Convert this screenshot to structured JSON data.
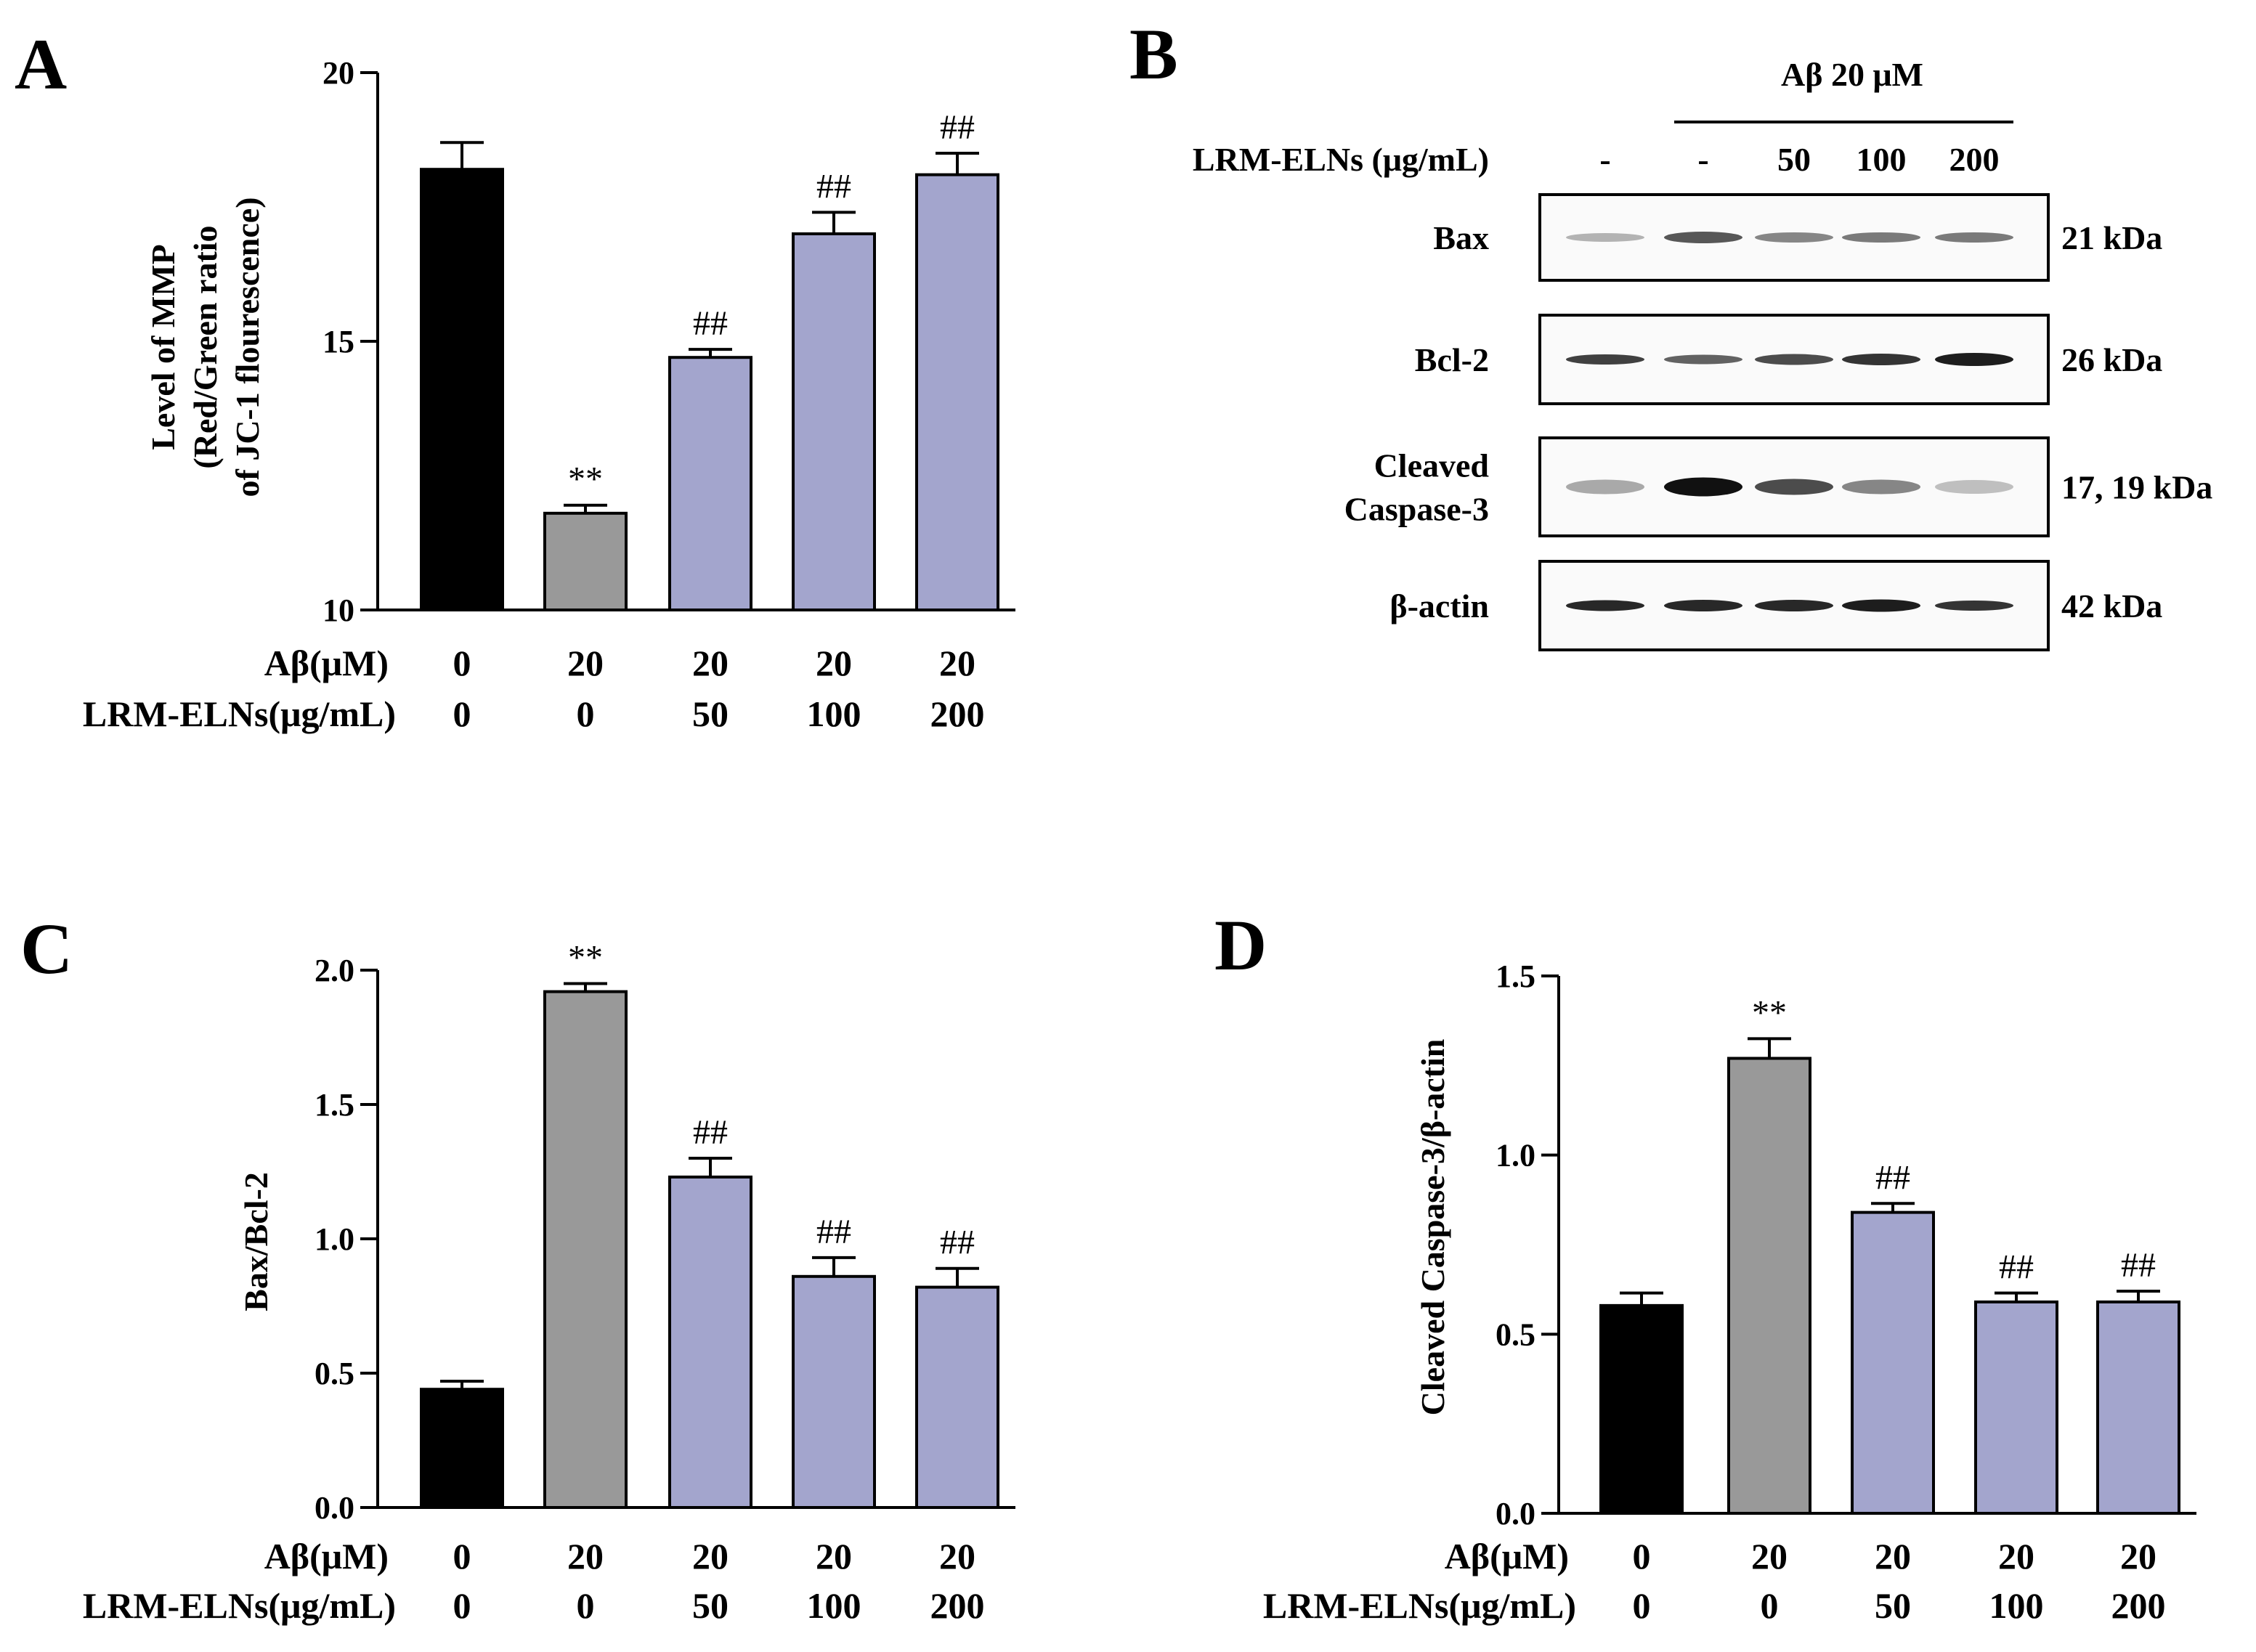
{
  "colors": {
    "control": "#000000",
    "model": "#999999",
    "treated": "#a3a5cd",
    "band": "#111111"
  },
  "condition_labels": {
    "abeta_label": "Aβ(μM)",
    "elns_label": "LRM-ELNs(μg/mL)",
    "abeta_values": [
      "0",
      "20",
      "20",
      "20",
      "20"
    ],
    "elns_values": [
      "0",
      "0",
      "50",
      "100",
      "200"
    ]
  },
  "panels": {
    "A": {
      "letter": "A"
    },
    "B": {
      "letter": "B"
    },
    "C": {
      "letter": "C"
    },
    "D": {
      "letter": "D"
    }
  },
  "chart_data": [
    {
      "id": "A",
      "type": "bar",
      "categories": [
        "0/0",
        "20/0",
        "20/50",
        "20/100",
        "20/200"
      ],
      "values": [
        18.2,
        11.8,
        14.7,
        17.0,
        18.1
      ],
      "errors": [
        0.5,
        0.15,
        0.15,
        0.4,
        0.4
      ],
      "annotations": [
        "",
        "**",
        "##",
        "##",
        "##"
      ],
      "ylabel_lines": [
        "Level of MMP",
        "(Red/Green ratio",
        "of JC-1 flourescence)"
      ],
      "ylim": [
        10,
        20
      ],
      "yticks": [
        10,
        15,
        20
      ],
      "ytick_labels": [
        "10",
        "15",
        "20"
      ]
    },
    {
      "id": "C",
      "type": "bar",
      "categories": [
        "0/0",
        "20/0",
        "20/50",
        "20/100",
        "20/200"
      ],
      "values": [
        0.44,
        1.92,
        1.23,
        0.86,
        0.82
      ],
      "errors": [
        0.03,
        0.03,
        0.07,
        0.07,
        0.07
      ],
      "annotations": [
        "",
        "**",
        "##",
        "##",
        "##"
      ],
      "ylabel_lines": [
        "Bax/Bcl-2"
      ],
      "ylim": [
        0,
        2.0
      ],
      "yticks": [
        0,
        0.5,
        1.0,
        1.5,
        2.0
      ],
      "ytick_labels": [
        "0.0",
        "0.5",
        "1.0",
        "1.5",
        "2.0"
      ]
    },
    {
      "id": "D",
      "type": "bar",
      "categories": [
        "0/0",
        "20/0",
        "20/50",
        "20/100",
        "20/200"
      ],
      "values": [
        0.58,
        1.27,
        0.84,
        0.59,
        0.59
      ],
      "errors": [
        0.035,
        0.055,
        0.025,
        0.025,
        0.03
      ],
      "annotations": [
        "",
        "**",
        "##",
        "##",
        "##"
      ],
      "ylabel_lines": [
        "Cleaved Caspase-3/β-actin"
      ],
      "ylim": [
        0,
        1.5
      ],
      "yticks": [
        0,
        0.5,
        1.0,
        1.5
      ],
      "ytick_labels": [
        "0.0",
        "0.5",
        "1.0",
        "1.5"
      ]
    }
  ],
  "western_blot": {
    "treatment_label": "Aβ 20 μM",
    "elns_label": "LRM-ELNs (μg/mL)",
    "lane_labels": [
      "-",
      "-",
      "50",
      "100",
      "200"
    ],
    "rows": [
      {
        "name": "Bax",
        "name_lines": [
          "Bax"
        ],
        "kda": "21 kDa",
        "intensity": [
          0.3,
          0.7,
          0.5,
          0.55,
          0.55
        ],
        "thickness": [
          0.6,
          0.8,
          0.7,
          0.7,
          0.7
        ]
      },
      {
        "name": "Bcl-2",
        "name_lines": [
          "Bcl-2"
        ],
        "kda": "26 kDa",
        "intensity": [
          0.8,
          0.65,
          0.75,
          0.85,
          0.95
        ],
        "thickness": [
          0.7,
          0.65,
          0.75,
          0.8,
          0.9
        ]
      },
      {
        "name": "Cleaved Caspase-3",
        "name_lines": [
          "Cleaved",
          "Caspase-3"
        ],
        "kda": "17, 19 kDa",
        "intensity": [
          0.35,
          1.0,
          0.75,
          0.5,
          0.25
        ],
        "thickness": [
          1.0,
          1.3,
          1.1,
          1.0,
          0.95
        ]
      },
      {
        "name": "β-actin",
        "name_lines": [
          "β-actin"
        ],
        "kda": "42 kDa",
        "intensity": [
          0.9,
          0.9,
          0.9,
          0.95,
          0.85
        ],
        "thickness": [
          0.75,
          0.8,
          0.8,
          0.85,
          0.7
        ]
      }
    ]
  }
}
